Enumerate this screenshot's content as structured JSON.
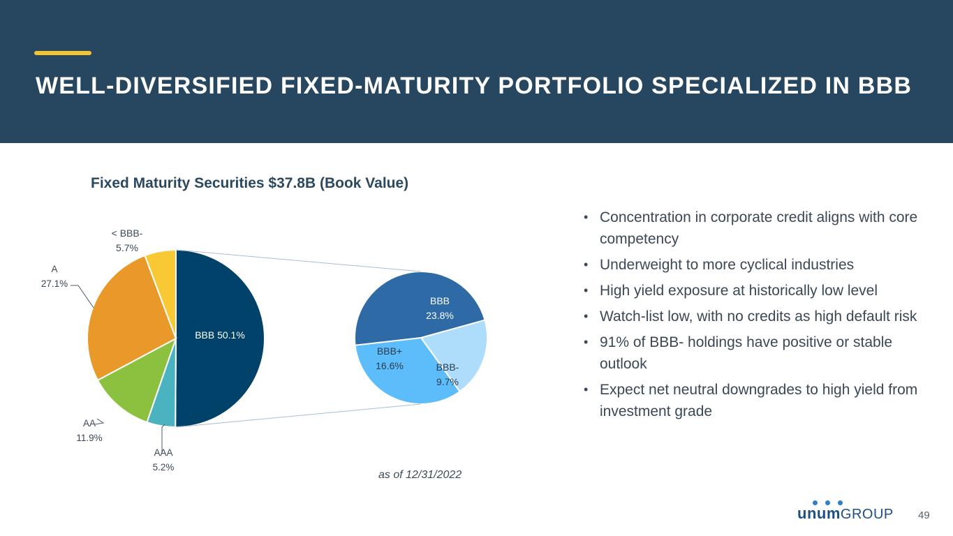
{
  "header": {
    "title": "WELL-DIVERSIFIED FIXED-MATURITY PORTFOLIO SPECIALIZED IN BBB",
    "accent_color": "#f6c330",
    "background_color": "#26475f"
  },
  "chart_data": {
    "type": "pie",
    "title": "Fixed Maturity Securities $37.8B (Book Value)",
    "main_pie": [
      {
        "name": "BBB",
        "value": 50.1,
        "label": "BBB 50.1%",
        "color": "#004269"
      },
      {
        "name": "AAA",
        "value": 5.2,
        "label_lines": [
          "AAA",
          "5.2%"
        ],
        "color": "#4ab3bf"
      },
      {
        "name": "AA",
        "value": 11.9,
        "label_lines": [
          "AA",
          "11.9%"
        ],
        "color": "#8cc13f"
      },
      {
        "name": "A",
        "value": 27.1,
        "label_lines": [
          "A",
          "27.1%"
        ],
        "color": "#e8992a"
      },
      {
        "name": "< BBB-",
        "value": 5.7,
        "label_lines": [
          "< BBB-",
          "5.7%"
        ],
        "color": "#f8c934"
      }
    ],
    "breakdown_of": "BBB",
    "secondary_pie": [
      {
        "name": "BBB",
        "value": 23.8,
        "label_lines": [
          "BBB",
          "23.8%"
        ],
        "color": "#2e6ba6"
      },
      {
        "name": "BBB-",
        "value": 9.7,
        "label_lines": [
          "BBB-",
          "9.7%"
        ],
        "color": "#aedcfb"
      },
      {
        "name": "BBB+",
        "value": 16.6,
        "label_lines": [
          "BBB+",
          "16.6%"
        ],
        "color": "#5cbdfa"
      }
    ],
    "note": "as of 12/31/2022"
  },
  "bullets": [
    "Concentration in corporate credit aligns with core competency",
    "Underweight to more cyclical industries",
    "High yield exposure at historically low level",
    "Watch-list low, with no credits as high default risk",
    "91% of BBB- holdings have positive or stable outlook",
    "Expect net neutral downgrades to high yield from investment grade"
  ],
  "bullet_symbol": "•",
  "footer": {
    "logo_unum": "unum",
    "logo_group": "GROUP",
    "logo_color": "#1e4f86",
    "page_number": "49"
  }
}
